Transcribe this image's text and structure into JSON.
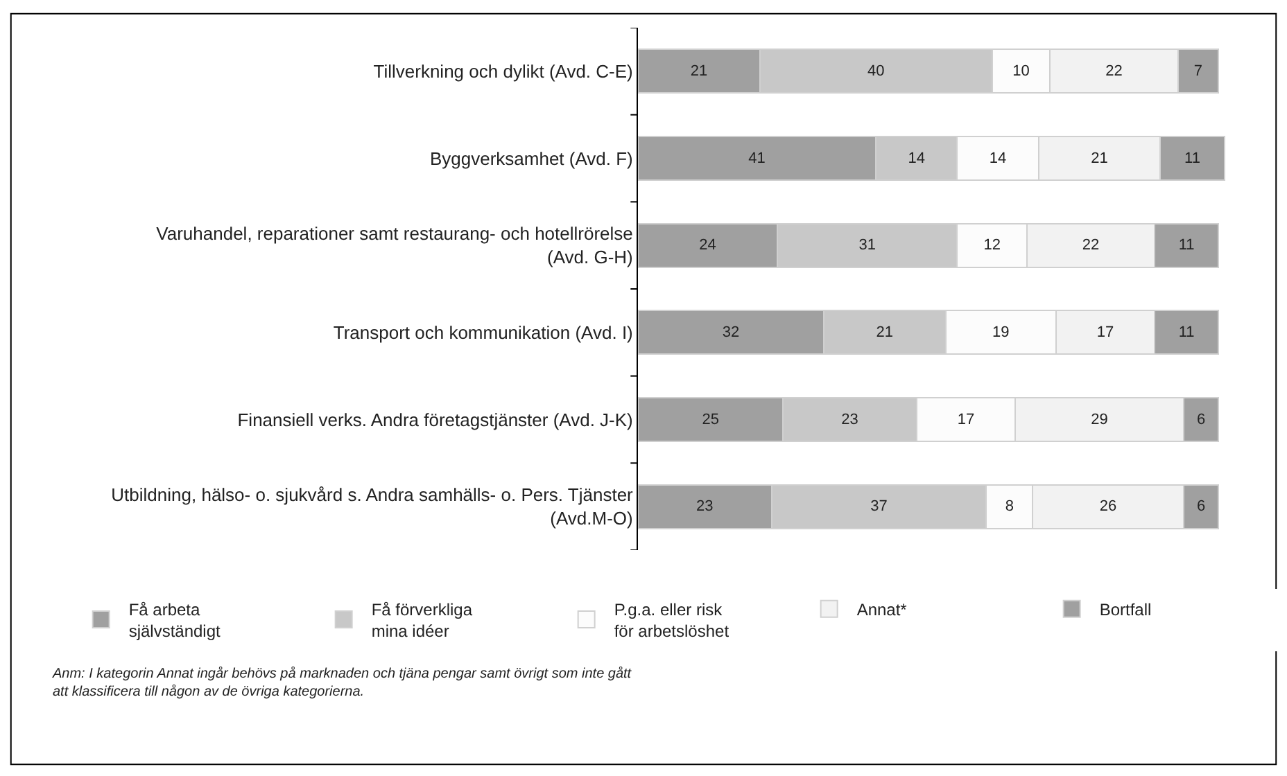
{
  "chart_data": {
    "type": "bar",
    "orientation": "horizontal",
    "stacked": true,
    "data_labels": true,
    "legend": "bottom",
    "tick_labels": "y",
    "categories": [
      "Tillverkning och dylikt (Avd. C-E)",
      "Byggverksamhet (Avd. F)",
      "Varuhandel, reparationer samt restaurang- och hotellrörelse\n(Avd. G-H)",
      "Transport och kommunikation (Avd. I)",
      "Finansiell verks. Andra företagstjänster (Avd. J-K)",
      "Utbildning, hälso- o. sjukvård s. Andra samhälls- o. Pers. Tjänster\n(Avd.M-O)"
    ],
    "series": [
      {
        "name": "Få arbeta\nsjälvständigt",
        "color": "#a0a0a0",
        "values": [
          21,
          41,
          24,
          32,
          25,
          23
        ]
      },
      {
        "name": "Få förverkliga\nmina idéer",
        "color": "#c8c8c8",
        "values": [
          40,
          14,
          31,
          21,
          23,
          37
        ]
      },
      {
        "name": "P.g.a. eller risk\nför arbetslöshet",
        "color": "#fcfcfc",
        "values": [
          10,
          14,
          12,
          19,
          17,
          8
        ]
      },
      {
        "name": "Annat*",
        "color": "#f2f2f2",
        "values": [
          22,
          21,
          22,
          17,
          29,
          26
        ]
      },
      {
        "name": "Bortfall",
        "color": "#a0a0a0",
        "values": [
          7,
          11,
          11,
          11,
          6,
          6
        ]
      }
    ],
    "annotations": [
      "Anm: I kategorin Annat ingår behövs på marknaden och tjäna pengar samt övrigt som inte gått\natt klassificera till någon av de övriga kategorierna."
    ]
  }
}
